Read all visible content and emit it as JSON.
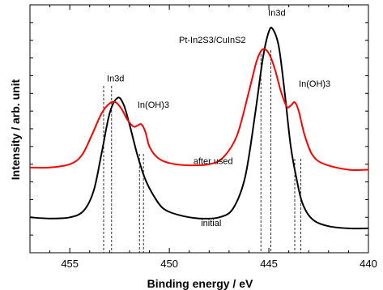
{
  "chart_data": {
    "type": "line",
    "title": "Pt-In2S3/CuInS2",
    "xlabel": "Binding energy / eV",
    "ylabel": "Intensity / arb. unit",
    "xlim": [
      457,
      440
    ],
    "x_reversed": true,
    "xticks": [
      "455",
      "450",
      "445",
      "440"
    ],
    "y_units": "arbitrary",
    "grid": false,
    "series": [
      {
        "name": "initial",
        "color": "#000000",
        "points": [
          [
            457.0,
            0.16
          ],
          [
            456.0,
            0.155
          ],
          [
            455.0,
            0.16
          ],
          [
            454.3,
            0.19
          ],
          [
            453.8,
            0.28
          ],
          [
            453.4,
            0.45
          ],
          [
            453.0,
            0.63
          ],
          [
            452.6,
            0.7
          ],
          [
            452.3,
            0.67
          ],
          [
            452.0,
            0.58
          ],
          [
            451.6,
            0.44
          ],
          [
            451.2,
            0.33
          ],
          [
            450.8,
            0.26
          ],
          [
            450.3,
            0.2
          ],
          [
            449.5,
            0.17
          ],
          [
            448.5,
            0.155
          ],
          [
            447.5,
            0.16
          ],
          [
            446.8,
            0.2
          ],
          [
            446.2,
            0.34
          ],
          [
            445.7,
            0.62
          ],
          [
            445.3,
            0.88
          ],
          [
            445.0,
            1.0
          ],
          [
            444.8,
            1.01
          ],
          [
            444.5,
            0.93
          ],
          [
            444.2,
            0.72
          ],
          [
            443.9,
            0.48
          ],
          [
            443.6,
            0.33
          ],
          [
            443.3,
            0.22
          ],
          [
            442.8,
            0.15
          ],
          [
            442.0,
            0.12
          ],
          [
            441.0,
            0.11
          ],
          [
            440.0,
            0.11
          ]
        ]
      },
      {
        "name": "after used",
        "color": "#ff0000",
        "points": [
          [
            457.0,
            0.385
          ],
          [
            456.0,
            0.385
          ],
          [
            455.0,
            0.4
          ],
          [
            454.4,
            0.44
          ],
          [
            453.9,
            0.53
          ],
          [
            453.4,
            0.63
          ],
          [
            453.0,
            0.675
          ],
          [
            452.7,
            0.68
          ],
          [
            452.4,
            0.65
          ],
          [
            452.1,
            0.6
          ],
          [
            451.8,
            0.57
          ],
          [
            451.6,
            0.575
          ],
          [
            451.4,
            0.58
          ],
          [
            451.2,
            0.545
          ],
          [
            451.0,
            0.48
          ],
          [
            450.6,
            0.43
          ],
          [
            450.0,
            0.405
          ],
          [
            449.0,
            0.395
          ],
          [
            448.0,
            0.4
          ],
          [
            447.3,
            0.43
          ],
          [
            446.6,
            0.53
          ],
          [
            446.0,
            0.73
          ],
          [
            445.6,
            0.87
          ],
          [
            445.3,
            0.92
          ],
          [
            445.0,
            0.9
          ],
          [
            444.7,
            0.83
          ],
          [
            444.4,
            0.73
          ],
          [
            444.1,
            0.66
          ],
          [
            443.9,
            0.665
          ],
          [
            443.7,
            0.68
          ],
          [
            443.5,
            0.64
          ],
          [
            443.2,
            0.53
          ],
          [
            442.8,
            0.44
          ],
          [
            442.2,
            0.4
          ],
          [
            441.0,
            0.375
          ],
          [
            440.0,
            0.375
          ]
        ]
      }
    ],
    "reference_lines_x": [
      453.3,
      452.9,
      451.5,
      451.3,
      445.4,
      444.9,
      443.7,
      443.4
    ],
    "annotations": [
      {
        "text": "In3d",
        "x": 452.7,
        "y": 0.775
      },
      {
        "text": "In(OH)3",
        "x": 450.8,
        "y": 0.655
      },
      {
        "text": "In3d",
        "x": 444.6,
        "y": 1.07
      },
      {
        "text": "In(OH)3",
        "x": 442.7,
        "y": 0.75
      },
      {
        "text": "after used",
        "x": 447.8,
        "y": 0.4
      },
      {
        "text": "initial",
        "x": 447.9,
        "y": 0.12
      }
    ]
  }
}
